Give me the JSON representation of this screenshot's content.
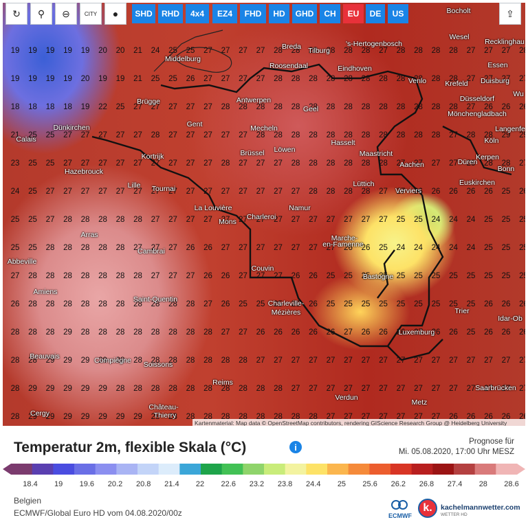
{
  "toolbar": {
    "tools": [
      {
        "name": "refresh-icon",
        "glyph": "↻"
      },
      {
        "name": "location-pin-icon",
        "glyph": "⚲"
      },
      {
        "name": "zoom-icon",
        "glyph": "⊖"
      },
      {
        "name": "city-toggle",
        "glyph": "CITY"
      },
      {
        "name": "pin-shape-icon",
        "glyph": "●"
      }
    ],
    "models": [
      "SHD",
      "RHD",
      "4x4",
      "EZ4",
      "FHD",
      "HD",
      "GHD",
      "CH",
      "EU",
      "DE",
      "US"
    ],
    "active_model": "EU",
    "share_glyph": "⇪"
  },
  "map": {
    "credits": "Kartenmaterial: Map data © OpenStreetMap contributors, rendering GIScience Research Group @ Heidelberg University",
    "cities": [
      {
        "n": "Bocholt"
      },
      {
        "n": "Wesel"
      },
      {
        "n": "Recklinghau"
      },
      {
        "n": "Breda"
      },
      {
        "n": "Tilburg"
      },
      {
        "n": "'s-Hertogenbosch"
      },
      {
        "n": "Middelburg"
      },
      {
        "n": "Roosendaal"
      },
      {
        "n": "Eindhoven"
      },
      {
        "n": "Essen"
      },
      {
        "n": "Venlo"
      },
      {
        "n": "Duisburg"
      },
      {
        "n": "Krefeld"
      },
      {
        "n": "Wu"
      },
      {
        "n": "Düsseldorf"
      },
      {
        "n": "Brügge"
      },
      {
        "n": "Antwerpen"
      },
      {
        "n": "Geel"
      },
      {
        "n": "Mönchengladbach"
      },
      {
        "n": "Gent"
      },
      {
        "n": "Langenfe"
      },
      {
        "n": "Dünkirchen"
      },
      {
        "n": "Mecheln"
      },
      {
        "n": "Calais"
      },
      {
        "n": "Hasselt"
      },
      {
        "n": "Köln"
      },
      {
        "n": "Brüssel"
      },
      {
        "n": "Löwen"
      },
      {
        "n": "Maastricht"
      },
      {
        "n": "Kortrijk"
      },
      {
        "n": "Kerpen"
      },
      {
        "n": "Aachen"
      },
      {
        "n": "Düren"
      },
      {
        "n": "Bonn"
      },
      {
        "n": "Hazebrouck"
      },
      {
        "n": "Lüttich"
      },
      {
        "n": "Euskirchen"
      },
      {
        "n": "Lille"
      },
      {
        "n": "Tournai"
      },
      {
        "n": "Verviers"
      },
      {
        "n": "La Louvière"
      },
      {
        "n": "Namur"
      },
      {
        "n": "Charleroi"
      },
      {
        "n": "Mons"
      },
      {
        "n": "Arras"
      },
      {
        "n": "Marche-"
      },
      {
        "n": "en-Famenne"
      },
      {
        "n": "Cambrai"
      },
      {
        "n": "Abbeville"
      },
      {
        "n": "Couvin"
      },
      {
        "n": "Bastogne"
      },
      {
        "n": "Amiens"
      },
      {
        "n": "Saint-Quentin"
      },
      {
        "n": "Charleville-"
      },
      {
        "n": "Mézières"
      },
      {
        "n": "Trier"
      },
      {
        "n": "Idar-Ob"
      },
      {
        "n": "Luxemburg"
      },
      {
        "n": "Beauvais"
      },
      {
        "n": "Compiègne"
      },
      {
        "n": "Soissons"
      },
      {
        "n": "Reims"
      },
      {
        "n": "Saarbrücken"
      },
      {
        "n": "Verdun"
      },
      {
        "n": "Metz"
      },
      {
        "n": "Château-"
      },
      {
        "n": "Thierry"
      },
      {
        "n": "Cergy"
      }
    ],
    "grid_rows": [
      [
        "19",
        "19",
        "19",
        "19",
        "19",
        "20",
        "20",
        "21",
        "24",
        "25",
        "25",
        "27",
        "27",
        "27",
        "27",
        "28",
        "28",
        "28",
        "28",
        "28",
        "28",
        "27",
        "28",
        "28",
        "28",
        "28",
        "27",
        "27",
        "27",
        "28"
      ],
      [
        "19",
        "19",
        "19",
        "19",
        "20",
        "19",
        "19",
        "21",
        "25",
        "25",
        "26",
        "27",
        "27",
        "27",
        "27",
        "28",
        "28",
        "28",
        "28",
        "28",
        "28",
        "28",
        "28",
        "28",
        "28",
        "28",
        "27",
        "27",
        "27",
        "27"
      ],
      [
        "18",
        "18",
        "18",
        "18",
        "19",
        "22",
        "25",
        "27",
        "27",
        "27",
        "27",
        "27",
        "28",
        "28",
        "28",
        "28",
        "28",
        "28",
        "28",
        "28",
        "28",
        "28",
        "28",
        "28",
        "28",
        "28",
        "27",
        "26",
        "26",
        "26"
      ],
      [
        "21",
        "25",
        "25",
        "27",
        "27",
        "27",
        "27",
        "27",
        "28",
        "27",
        "27",
        "27",
        "27",
        "27",
        "28",
        "28",
        "28",
        "28",
        "28",
        "28",
        "28",
        "28",
        "28",
        "28",
        "28",
        "27",
        "28",
        "28",
        "29",
        "29"
      ],
      [
        "23",
        "25",
        "25",
        "27",
        "27",
        "27",
        "27",
        "27",
        "27",
        "27",
        "27",
        "27",
        "28",
        "27",
        "27",
        "27",
        "28",
        "28",
        "28",
        "28",
        "28",
        "28",
        "27",
        "27",
        "27",
        "27",
        "28",
        "28",
        "28",
        "27"
      ],
      [
        "24",
        "25",
        "27",
        "27",
        "27",
        "27",
        "27",
        "27",
        "27",
        "27",
        "27",
        "27",
        "27",
        "27",
        "27",
        "27",
        "27",
        "28",
        "28",
        "28",
        "28",
        "27",
        "27",
        "26",
        "26",
        "26",
        "26",
        "26",
        "25",
        "26"
      ],
      [
        "25",
        "25",
        "27",
        "28",
        "28",
        "28",
        "28",
        "28",
        "27",
        "27",
        "27",
        "27",
        "27",
        "27",
        "27",
        "27",
        "27",
        "27",
        "27",
        "27",
        "27",
        "27",
        "25",
        "25",
        "24",
        "24",
        "24",
        "25",
        "25",
        "25"
      ],
      [
        "25",
        "25",
        "28",
        "28",
        "28",
        "28",
        "28",
        "27",
        "27",
        "27",
        "26",
        "26",
        "27",
        "27",
        "27",
        "27",
        "27",
        "27",
        "27",
        "26",
        "26",
        "25",
        "24",
        "24",
        "24",
        "24",
        "24",
        "25",
        "25",
        "25"
      ],
      [
        "27",
        "28",
        "28",
        "28",
        "28",
        "28",
        "28",
        "28",
        "27",
        "27",
        "27",
        "26",
        "26",
        "27",
        "27",
        "27",
        "26",
        "26",
        "25",
        "25",
        "25",
        "25",
        "25",
        "25",
        "25",
        "25",
        "25",
        "25",
        "25",
        "25"
      ],
      [
        "26",
        "28",
        "28",
        "28",
        "28",
        "28",
        "28",
        "28",
        "28",
        "28",
        "28",
        "27",
        "26",
        "25",
        "25",
        "25",
        "26",
        "26",
        "25",
        "25",
        "25",
        "25",
        "25",
        "25",
        "25",
        "25",
        "25",
        "26",
        "26",
        "26"
      ],
      [
        "28",
        "28",
        "28",
        "29",
        "28",
        "28",
        "28",
        "28",
        "28",
        "28",
        "28",
        "28",
        "27",
        "27",
        "26",
        "26",
        "26",
        "26",
        "26",
        "27",
        "26",
        "26",
        "26",
        "27",
        "26",
        "26",
        "25",
        "26",
        "26",
        "26"
      ],
      [
        "28",
        "28",
        "29",
        "29",
        "29",
        "29",
        "28",
        "28",
        "28",
        "28",
        "28",
        "28",
        "28",
        "28",
        "27",
        "27",
        "27",
        "27",
        "27",
        "27",
        "27",
        "27",
        "27",
        "27",
        "27",
        "27",
        "27",
        "27",
        "27",
        "27"
      ],
      [
        "28",
        "29",
        "29",
        "29",
        "29",
        "29",
        "28",
        "28",
        "28",
        "28",
        "28",
        "28",
        "28",
        "28",
        "28",
        "28",
        "27",
        "27",
        "27",
        "27",
        "27",
        "27",
        "27",
        "27",
        "27",
        "27",
        "27",
        "27",
        "27",
        "27"
      ],
      [
        "28",
        "29",
        "29",
        "29",
        "29",
        "29",
        "29",
        "29",
        "28",
        "28",
        "28",
        "28",
        "28",
        "28",
        "28",
        "28",
        "28",
        "28",
        "27",
        "27",
        "27",
        "27",
        "27",
        "27",
        "27",
        "26",
        "26",
        "26",
        "26",
        "26"
      ],
      [
        "28",
        "29",
        "29",
        "29",
        "29",
        "29",
        "29",
        "29",
        "29",
        "28",
        "28",
        "28",
        "28",
        "28",
        "28",
        "28",
        "28",
        "28",
        "28",
        "27",
        "27",
        "27",
        "27",
        "27",
        "27",
        "26",
        "26",
        "26",
        "26",
        "26"
      ]
    ]
  },
  "legend": {
    "title": "Temperatur 2m, flexible Skala (°C)",
    "forecast_label": "Prognose für",
    "forecast_date": "Mi. 05.08.2020, 17:00 Uhr MESZ",
    "ticks": [
      "18.4",
      "19",
      "19.6",
      "20.2",
      "20.8",
      "21.4",
      "22",
      "22.6",
      "23.2",
      "23.8",
      "24.4",
      "25",
      "25.6",
      "26.2",
      "26.8",
      "27.4",
      "28",
      "28.6"
    ],
    "colors": [
      "#7b3b6e",
      "#5a3fb0",
      "#4a4de0",
      "#6a6fe6",
      "#8b8ff0",
      "#a9b4f4",
      "#c3d4f8",
      "#dcecfb",
      "#3ba6d8",
      "#1ea44a",
      "#42c155",
      "#8fd46b",
      "#c9ec7a",
      "#f3f3a0",
      "#fde267",
      "#fbb64e",
      "#f58a3a",
      "#ec5d2e",
      "#d83525",
      "#b81f1f",
      "#9b1414",
      "#b44040",
      "#d97a7a",
      "#f0b5b5"
    ]
  },
  "footer": {
    "region": "Belgien",
    "model_run": "ECMWF/Global Euro HD vom 04.08.2020/00z",
    "ecmwf_text": "ECMWF",
    "brand": "kachelmannwetter.com",
    "brand_sub": "WETTER HD",
    "brand_logo_letter": "k."
  }
}
